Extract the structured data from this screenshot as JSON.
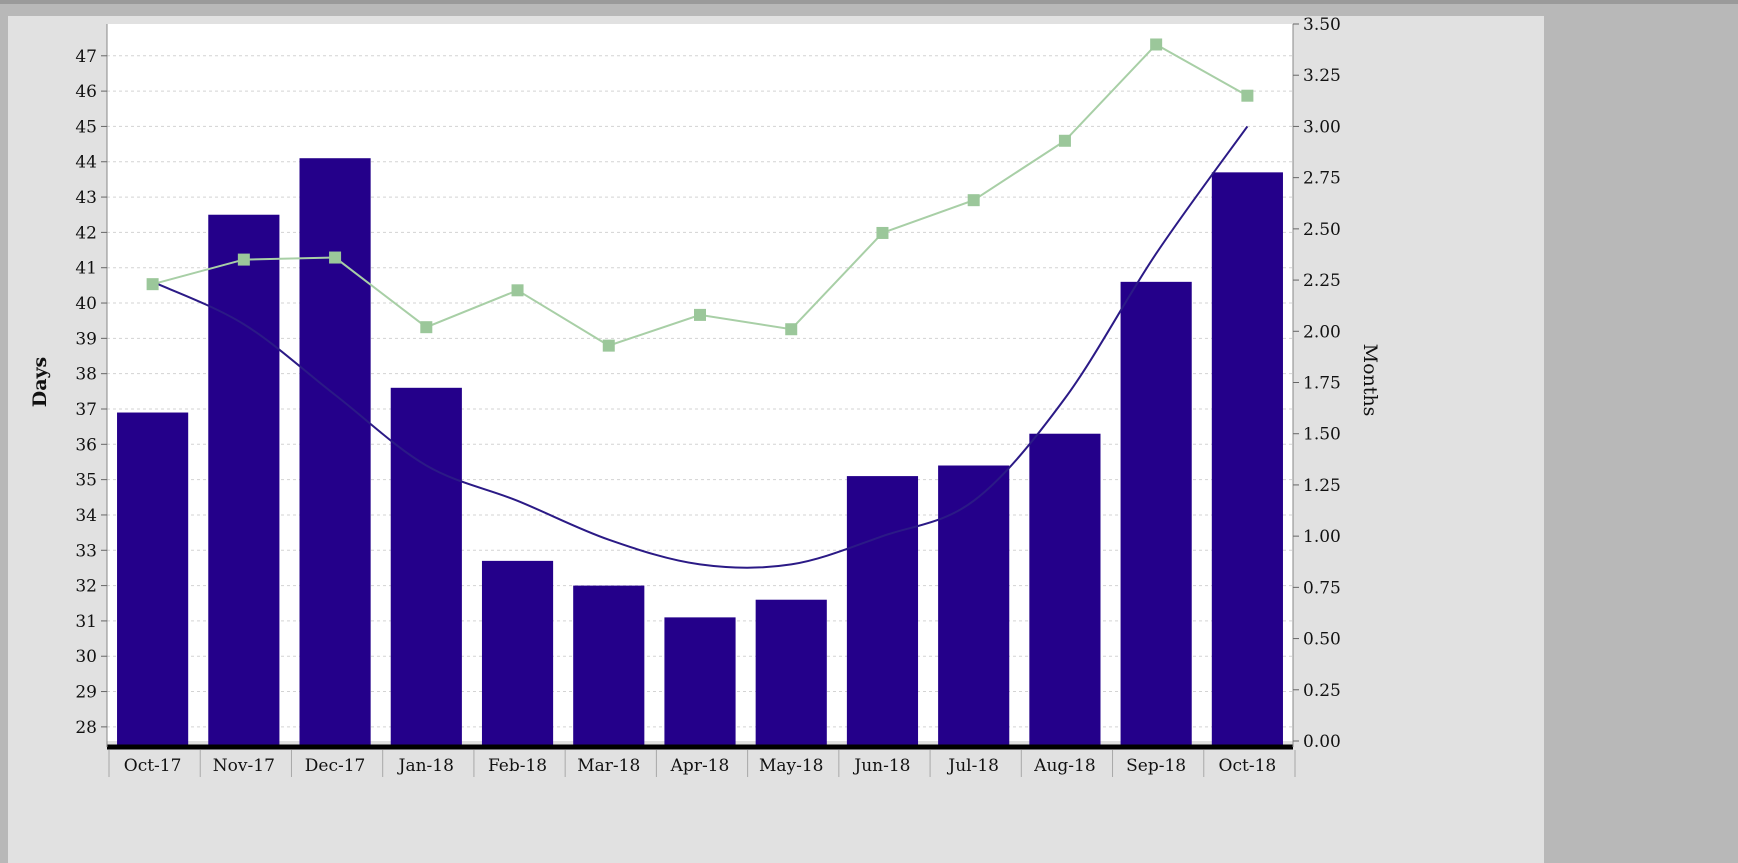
{
  "colors": {
    "bar": "#24008a",
    "trend_line": "#2b1a86",
    "rate_line": "#a8cfa6",
    "rate_marker": "#9bc79a",
    "grid": "#d3d3d3",
    "plot_bg": "#ffffff",
    "panel_bg": "#e1e1e1",
    "outer_bg": "#b8b8b8"
  },
  "chart_data": {
    "type": "bar",
    "title": "",
    "xlabel": "",
    "ylabel": "Days",
    "y2label": "Months",
    "categories": [
      "Oct-17",
      "Nov-17",
      "Dec-17",
      "Jan-18",
      "Feb-18",
      "Mar-18",
      "Apr-18",
      "May-18",
      "Jun-18",
      "Jul-18",
      "Aug-18",
      "Sep-18",
      "Oct-18"
    ],
    "ylim": [
      27.6,
      47.9
    ],
    "y2lim": [
      0.0,
      3.5
    ],
    "y_ticks": [
      "28",
      "29",
      "30",
      "31",
      "32",
      "33",
      "34",
      "35",
      "36",
      "37",
      "38",
      "39",
      "40",
      "41",
      "42",
      "43",
      "44",
      "45",
      "46",
      "47"
    ],
    "y2_ticks": [
      "0.00",
      "0.25",
      "0.50",
      "0.75",
      "1.00",
      "1.25",
      "1.50",
      "1.75",
      "2.00",
      "2.25",
      "2.50",
      "2.75",
      "3.00",
      "3.25",
      "3.50"
    ],
    "grid": true,
    "series": [
      {
        "type": "bar",
        "axis": "left",
        "values": [
          36.9,
          42.5,
          44.1,
          37.6,
          32.7,
          32.0,
          31.1,
          31.6,
          35.1,
          35.4,
          36.3,
          40.6,
          43.7
        ]
      },
      {
        "type": "line",
        "axis": "right",
        "marker": "square",
        "values": [
          2.23,
          2.35,
          2.36,
          2.02,
          2.2,
          1.93,
          2.08,
          2.01,
          2.48,
          2.64,
          2.93,
          3.4,
          3.15
        ]
      },
      {
        "type": "trendline",
        "axis": "left",
        "values": [
          40.6,
          39.4,
          37.4,
          35.4,
          34.4,
          33.3,
          32.6,
          32.6,
          33.4,
          34.4,
          37.3,
          41.4,
          45.0
        ]
      }
    ]
  }
}
